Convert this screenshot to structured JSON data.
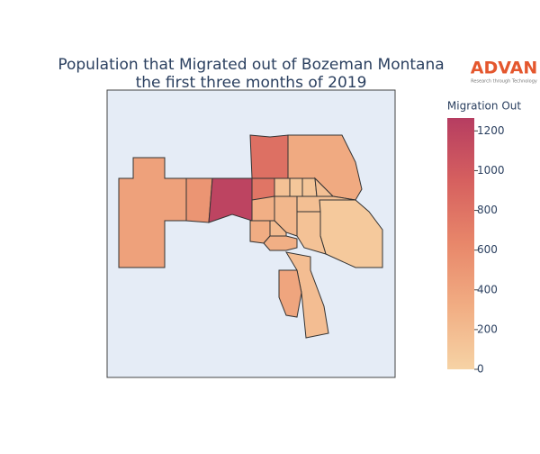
{
  "chart_data": {
    "type": "choropleth",
    "title": [
      "Population that Migrated out of Bozeman Montana",
      "the first three months of 2019"
    ],
    "logo": {
      "name": "ADVAN",
      "tagline": "Research through Technology",
      "color": "#e4572e"
    },
    "values": [
      420,
      520,
      1200,
      780,
      820,
      340,
      150,
      100,
      120,
      160,
      80,
      140,
      300,
      320,
      230,
      300,
      180,
      380,
      200,
      170
    ],
    "colorbar": {
      "title": "Migration Out",
      "clim": [
        0,
        1265
      ],
      "ticks": [
        0,
        200,
        400,
        600,
        800,
        1000,
        1200
      ],
      "colorscale": [
        "#f6d3a5",
        "#f1ad83",
        "#e8876a",
        "#d6605f",
        "#b63d61"
      ]
    },
    "border_color": "#333333",
    "background": "#e5ecf6"
  }
}
